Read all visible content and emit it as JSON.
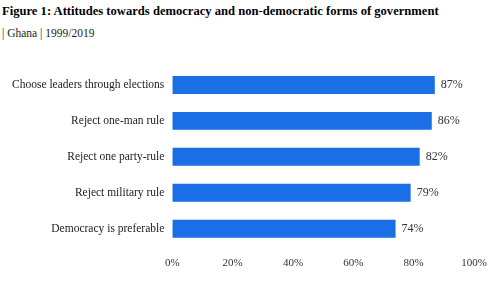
{
  "chart_data": {
    "type": "bar",
    "title": "Figure 1: Attitudes towards democracy and non-democratic forms of government",
    "subtitle": "| Ghana | 1999/2019",
    "orientation": "horizontal",
    "categories": [
      "Choose leaders through elections",
      "Reject one-man rule",
      "Reject one party-rule",
      "Reject military rule",
      "Democracy is preferable"
    ],
    "values": [
      87,
      86,
      82,
      79,
      74
    ],
    "value_labels": [
      "87%",
      "86%",
      "82%",
      "79%",
      "74%"
    ],
    "data_labels": true,
    "color": "#1a6ee6",
    "xlim": [
      0,
      100
    ],
    "xticks": [
      {
        "value": 0,
        "label": "0%"
      },
      {
        "value": 20,
        "label": "20%"
      },
      {
        "value": 40,
        "label": "40%"
      },
      {
        "value": 60,
        "label": "60%"
      },
      {
        "value": 80,
        "label": "80%"
      },
      {
        "value": 100,
        "label": "100%"
      }
    ],
    "grid": false
  }
}
